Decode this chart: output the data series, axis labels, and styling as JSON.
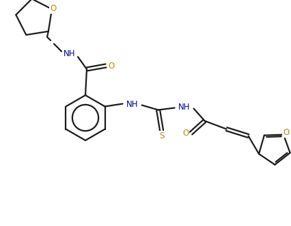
{
  "bg_color": "#ffffff",
  "bond_color": "#1a1a1a",
  "atom_color_O": "#b8860b",
  "atom_color_N": "#00008b",
  "atom_color_S": "#b8860b",
  "label_NH": "NH",
  "label_O": "O",
  "label_S": "S",
  "figsize": [
    4.26,
    3.3
  ],
  "dpi": 100,
  "lw": 1.6,
  "fs": 8.5
}
